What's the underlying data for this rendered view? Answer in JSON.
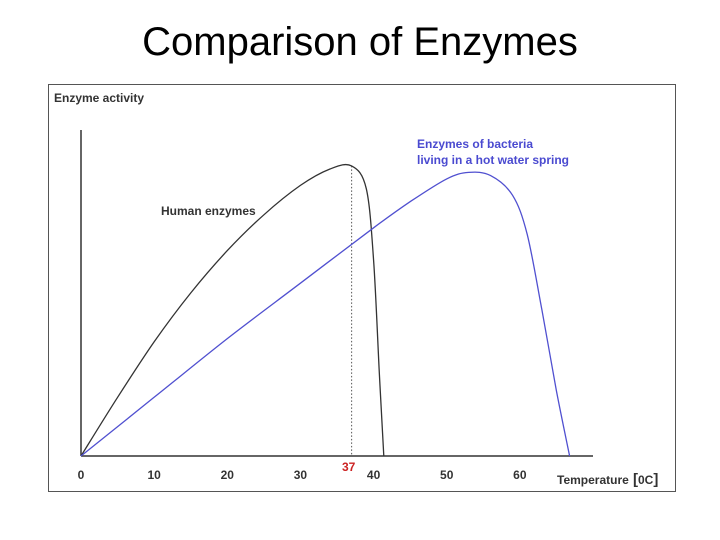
{
  "slide": {
    "title": "Comparison of Enzymes"
  },
  "colors": {
    "human": "#333333",
    "bacteria": "#5050d0",
    "marker": "#cc2222",
    "axis": "#333333"
  },
  "chart_data": {
    "type": "line",
    "ylabel": "Enzyme activity",
    "xlabel": "Temperature",
    "xunit": "0C",
    "xlim": [
      0,
      70
    ],
    "ylim": [
      0,
      1
    ],
    "x_ticks": [
      0,
      10,
      20,
      30,
      40,
      50,
      60
    ],
    "marker": {
      "x": 37,
      "label": "37"
    },
    "series": [
      {
        "name": "Human enzymes",
        "x": [
          0,
          5,
          10,
          15,
          20,
          25,
          30,
          34,
          37,
          39,
          40,
          40.8,
          41.4
        ],
        "y": [
          0,
          0.18,
          0.35,
          0.5,
          0.63,
          0.74,
          0.83,
          0.88,
          0.89,
          0.82,
          0.6,
          0.25,
          0
        ]
      },
      {
        "name": "Enzymes of bacteria living in a hot water spring",
        "name_lines": [
          "Enzymes of bacteria",
          "living in a hot water spring"
        ],
        "x": [
          0,
          10,
          20,
          30,
          40,
          45,
          50,
          53,
          56,
          59,
          61,
          63,
          65,
          66.8
        ],
        "y": [
          0,
          0.18,
          0.36,
          0.53,
          0.7,
          0.78,
          0.85,
          0.87,
          0.86,
          0.8,
          0.68,
          0.45,
          0.2,
          0
        ]
      }
    ]
  }
}
